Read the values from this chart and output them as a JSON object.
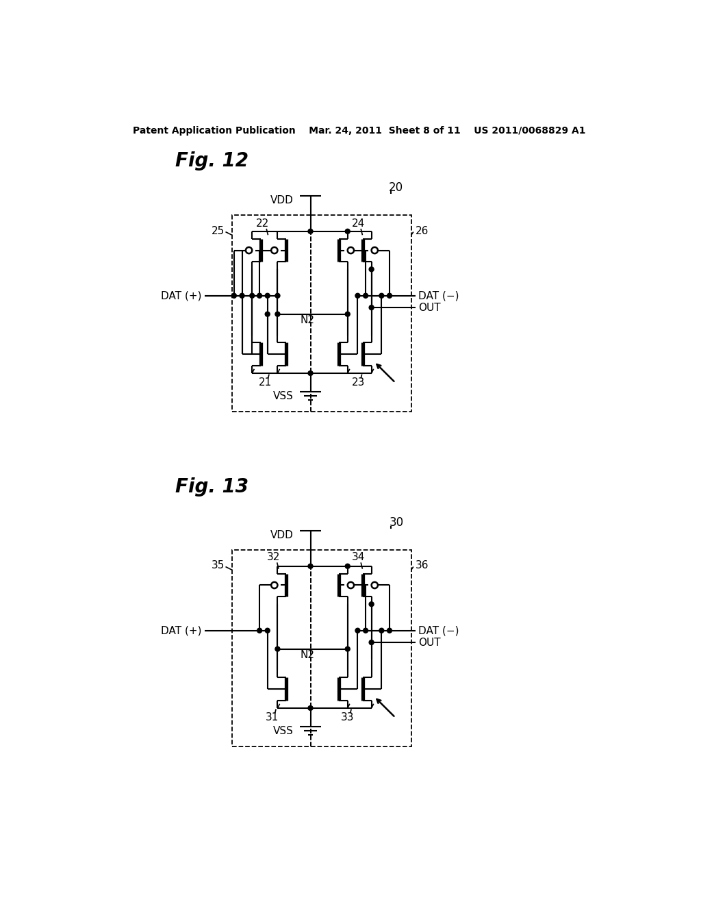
{
  "header": "Patent Application Publication    Mar. 24, 2011  Sheet 8 of 11    US 2011/0068829 A1",
  "fig12_label": "Fig. 12",
  "fig13_label": "Fig. 13",
  "bg": "#ffffff"
}
